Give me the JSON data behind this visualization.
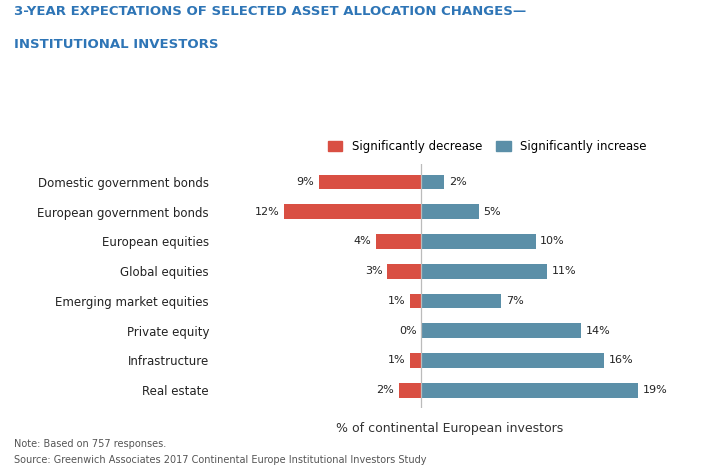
{
  "title_line1": "3-YEAR EXPECTATIONS OF SELECTED ASSET ALLOCATION CHANGES—",
  "title_line2": "INSTITUTIONAL INVESTORS",
  "categories": [
    "Domestic government bonds",
    "European government bonds",
    "European equities",
    "Global equities",
    "Emerging market equities",
    "Private equity",
    "Infrastructure",
    "Real estate"
  ],
  "decrease_values": [
    9,
    12,
    4,
    3,
    1,
    0,
    1,
    2
  ],
  "increase_values": [
    2,
    5,
    10,
    11,
    7,
    14,
    16,
    19
  ],
  "decrease_color": "#d94f43",
  "increase_color": "#5b8fa8",
  "xlabel": "% of continental European investors",
  "legend_decrease": "Significantly decrease",
  "legend_increase": "Significantly increase",
  "note": "Note: Based on 757 responses.",
  "source": "Source: Greenwich Associates 2017 Continental Europe Institutional Investors Study",
  "title_color": "#2e75b6",
  "axis_line_color": "#bbbbbb",
  "background_color": "#ffffff",
  "bar_height": 0.5,
  "xlim_left": -18,
  "xlim_right": 23
}
